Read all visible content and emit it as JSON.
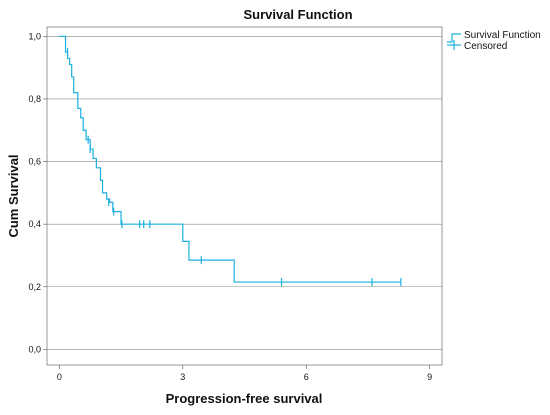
{
  "chart_data": {
    "type": "line",
    "title": "Survival Function",
    "xlabel": "Progression-free survival",
    "ylabel": "Cum Survival",
    "xlim": [
      -0.3,
      9.3
    ],
    "ylim": [
      -0.05,
      1.03
    ],
    "x_ticks": [
      0,
      3,
      6,
      9
    ],
    "x_tick_labels": [
      "0",
      "3",
      "6",
      "9"
    ],
    "y_ticks": [
      0,
      0.2,
      0.4,
      0.6,
      0.8,
      1.0
    ],
    "y_tick_labels": [
      "0,0",
      "0,2",
      "0,4",
      "0,6",
      "0,8",
      "1,0"
    ],
    "grid": "horizontal",
    "legend_position": "top-right",
    "series": [
      {
        "name": "Survival Function",
        "color": "#1ab0e0",
        "step_points": [
          [
            0,
            1.0
          ],
          [
            0.15,
            0.95
          ],
          [
            0.2,
            0.93
          ],
          [
            0.25,
            0.91
          ],
          [
            0.3,
            0.87
          ],
          [
            0.35,
            0.82
          ],
          [
            0.45,
            0.77
          ],
          [
            0.52,
            0.74
          ],
          [
            0.58,
            0.7
          ],
          [
            0.65,
            0.67
          ],
          [
            0.75,
            0.64
          ],
          [
            0.82,
            0.61
          ],
          [
            0.9,
            0.58
          ],
          [
            1.0,
            0.54
          ],
          [
            1.05,
            0.5
          ],
          [
            1.15,
            0.48
          ],
          [
            1.22,
            0.47
          ],
          [
            1.3,
            0.44
          ],
          [
            1.5,
            0.4
          ],
          [
            3.0,
            0.345
          ],
          [
            3.15,
            0.285
          ],
          [
            4.25,
            0.215
          ],
          [
            8.3,
            0.215
          ]
        ]
      },
      {
        "name": "Censored",
        "color": "#1ab0e0",
        "marker": "plus",
        "points": [
          [
            0.2,
            0.95
          ],
          [
            0.7,
            0.67
          ],
          [
            0.75,
            0.64
          ],
          [
            1.2,
            0.47
          ],
          [
            1.32,
            0.44
          ],
          [
            1.52,
            0.4
          ],
          [
            1.95,
            0.4
          ],
          [
            2.05,
            0.4
          ],
          [
            2.2,
            0.4
          ],
          [
            3.45,
            0.285
          ],
          [
            5.4,
            0.215
          ],
          [
            7.6,
            0.215
          ],
          [
            8.3,
            0.215
          ]
        ]
      }
    ]
  }
}
